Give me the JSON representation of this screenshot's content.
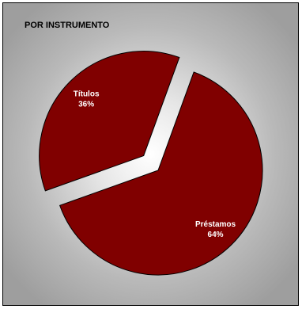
{
  "chart_data": {
    "type": "pie",
    "title": "POR INSTRUMENTO",
    "slices": [
      {
        "label": "Préstamos",
        "value": 64,
        "value_label": "64%",
        "exploded": false
      },
      {
        "label": "Títulos",
        "value": 36,
        "value_label": "36%",
        "exploded": true
      }
    ],
    "colors": {
      "slice_fill": "#800000",
      "slice_stroke": "#000000",
      "label_text": "#ffffff",
      "title_text": "#000000"
    },
    "legend": "none"
  }
}
